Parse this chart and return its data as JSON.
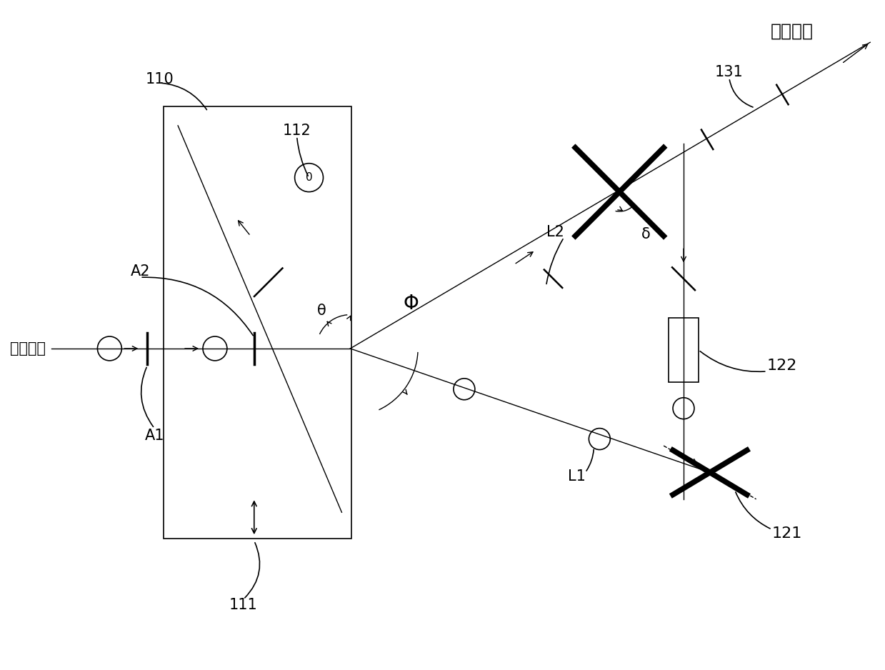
{
  "title": "合成光束",
  "label_131": "131",
  "label_110": "110",
  "label_112": "112",
  "label_111": "111",
  "label_122": "122",
  "label_121": "121",
  "label_A1": "A1",
  "label_A2": "A2",
  "label_L1": "L1",
  "label_L2": "L2",
  "label_phi": "Φ",
  "label_theta": "θ",
  "label_delta": "δ",
  "label_laser": "人射激光",
  "bg_color": "#ffffff",
  "line_color": "#000000"
}
